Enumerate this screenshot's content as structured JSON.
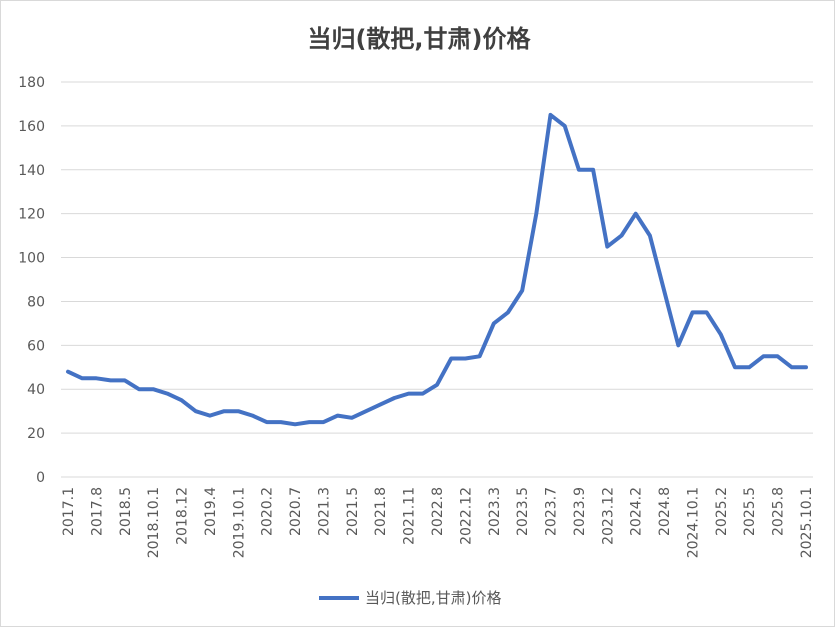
{
  "chart_data": {
    "type": "line",
    "title": "当归(散把,甘肃)价格",
    "xlabel": "",
    "ylabel": "",
    "ylim": [
      0,
      180
    ],
    "yticks": [
      0,
      20,
      40,
      60,
      80,
      100,
      120,
      140,
      160,
      180
    ],
    "grid": true,
    "legend_position": "bottom",
    "line_color": "#4472c4",
    "x_tick_labels": [
      "2017.1",
      "2017.8",
      "2018.5",
      "2018.10.1",
      "2018.12",
      "2019.4",
      "2019.10.1",
      "2020.2",
      "2020.7",
      "2021.3",
      "2021.5",
      "2021.8",
      "2021.11",
      "2022.8",
      "2022.12",
      "2023.3",
      "2023.5",
      "2023.7",
      "2023.9",
      "2023.12",
      "2024.2",
      "2024.8",
      "2024.10.1",
      "2025.2",
      "2025.5",
      "2025.8",
      "2025.10.1"
    ],
    "series": [
      {
        "name": "当归(散把,甘肃)价格",
        "values": [
          48,
          45,
          45,
          44,
          44,
          40,
          40,
          38,
          35,
          30,
          28,
          30,
          30,
          28,
          25,
          25,
          24,
          25,
          25,
          28,
          27,
          30,
          33,
          36,
          38,
          38,
          42,
          54,
          54,
          55,
          70,
          75,
          85,
          120,
          165,
          160,
          140,
          140,
          105,
          110,
          120,
          110,
          85,
          60,
          75,
          75,
          65,
          50,
          50,
          55,
          55,
          50,
          50
        ]
      }
    ]
  }
}
